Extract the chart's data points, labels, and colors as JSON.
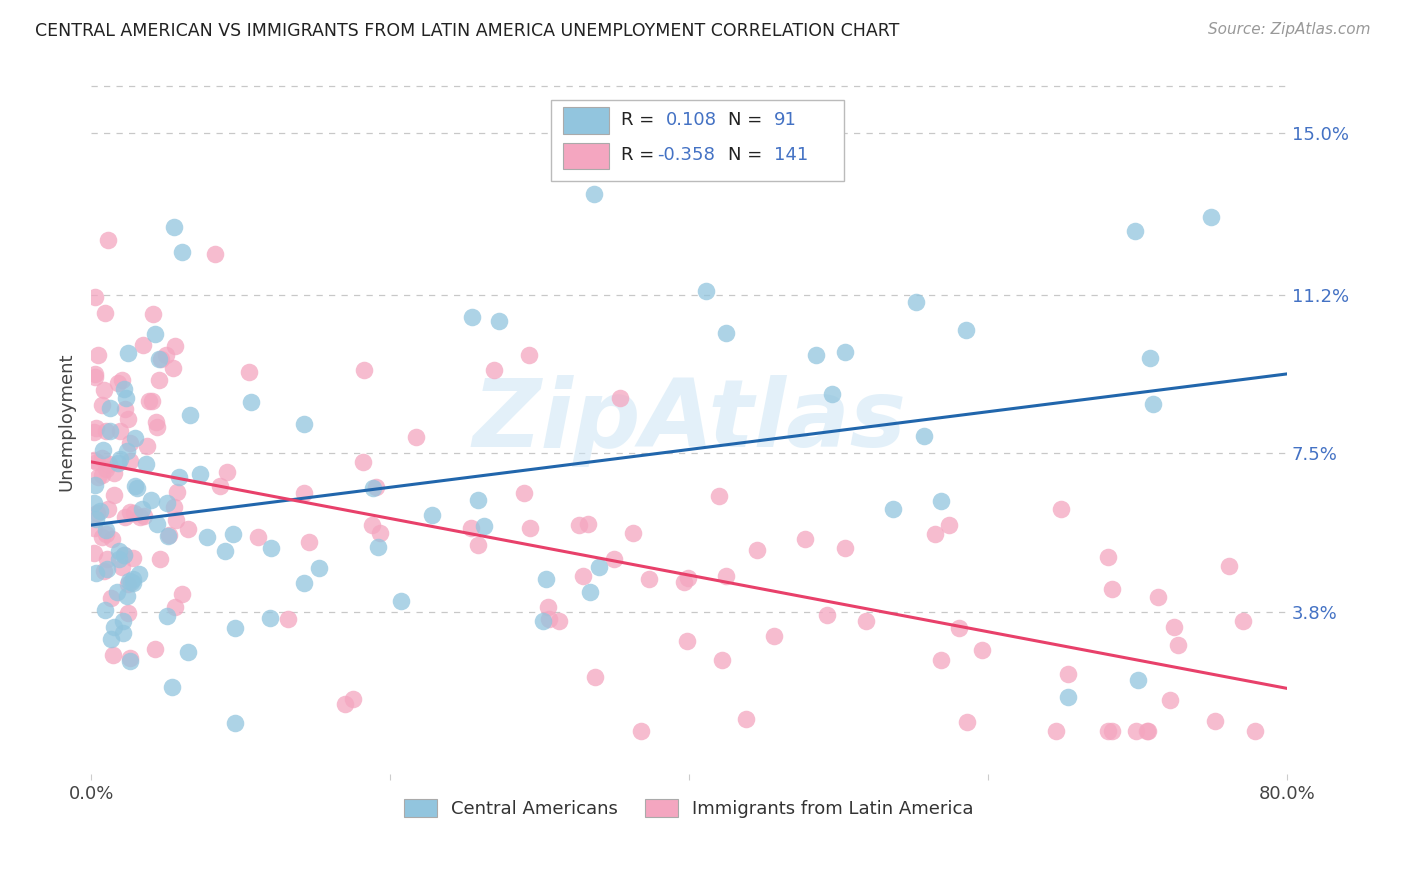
{
  "title": "CENTRAL AMERICAN VS IMMIGRANTS FROM LATIN AMERICA UNEMPLOYMENT CORRELATION CHART",
  "source": "Source: ZipAtlas.com",
  "ylabel": "Unemployment",
  "ytick_labels": [
    "15.0%",
    "11.2%",
    "7.5%",
    "3.8%"
  ],
  "ytick_values": [
    0.15,
    0.112,
    0.075,
    0.038
  ],
  "xmin": 0.0,
  "xmax": 0.8,
  "ymin": 0.0,
  "ymax": 0.165,
  "color_blue": "#92c5de",
  "color_pink": "#f4a6c0",
  "line_blue": "#2166ac",
  "line_pink": "#e8406a",
  "title_color": "#222222",
  "source_color": "#999999",
  "r_color": "#4472c4",
  "background_color": "#ffffff",
  "watermark": "ZipAtlas",
  "legend_r1_black": "R = ",
  "legend_r1_val": "0.108",
  "legend_n1_black": "  N = ",
  "legend_n1_val": "91",
  "legend_r2_black": "R = ",
  "legend_r2_val": "-0.358",
  "legend_n2_black": "  N = ",
  "legend_n2_val": "141"
}
